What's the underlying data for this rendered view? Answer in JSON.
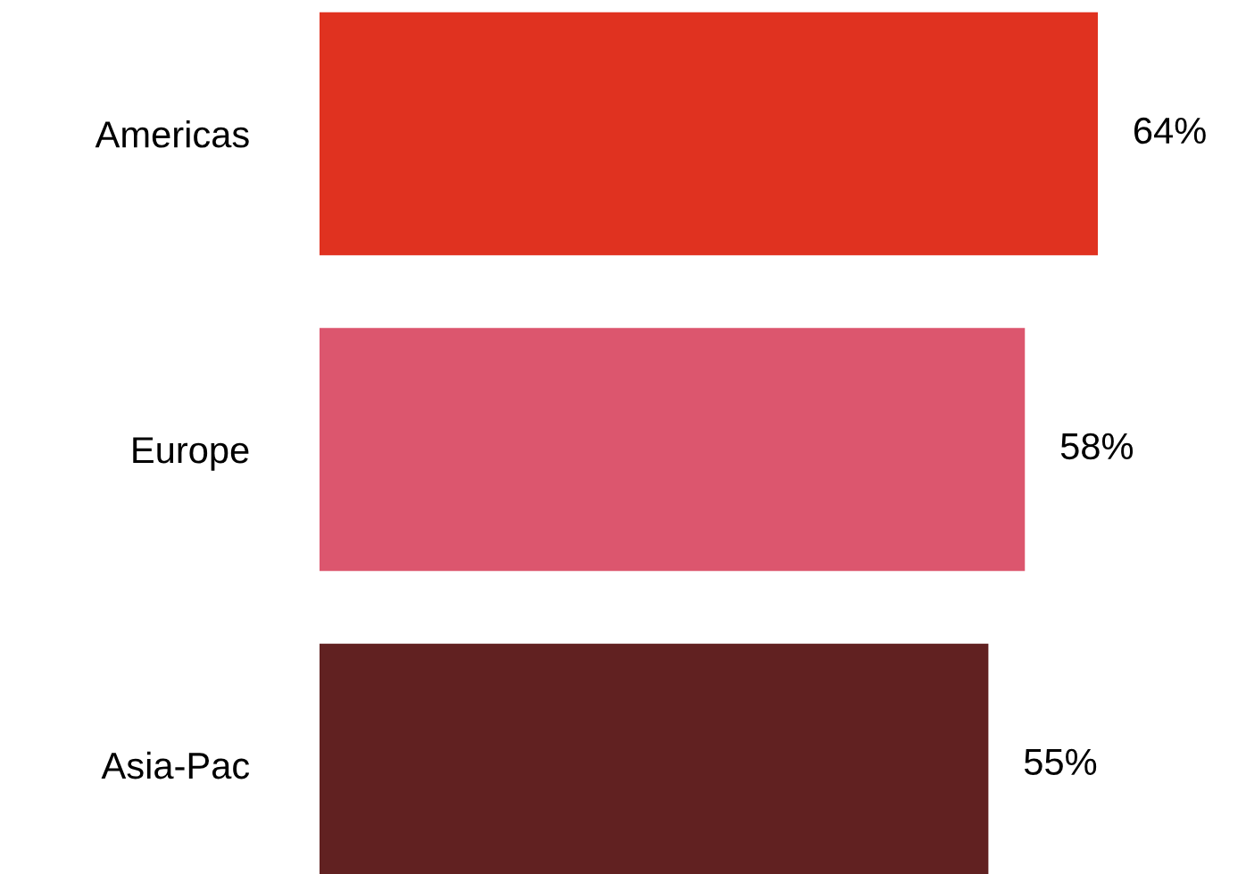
{
  "chart_data": {
    "type": "bar",
    "orientation": "horizontal",
    "categories": [
      "Americas",
      "Europe",
      "Asia-Pac"
    ],
    "values": [
      64,
      58,
      55
    ],
    "colors": [
      "#e03220",
      "#dc566e",
      "#612121"
    ],
    "value_labels": [
      "64%",
      "58%",
      "55%"
    ]
  }
}
